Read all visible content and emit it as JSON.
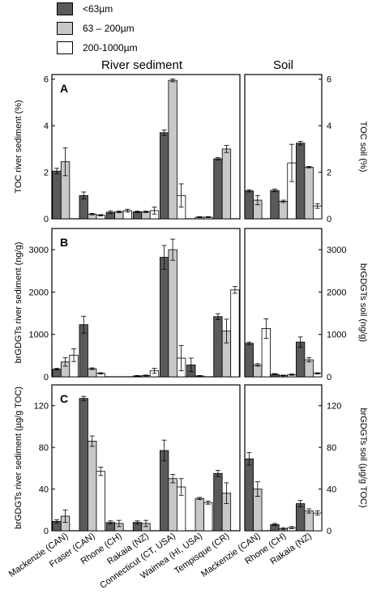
{
  "colors": {
    "lt63": "#5a5a5a",
    "m63_200": "#c8c8c8",
    "m200_1000": "#ffffff",
    "axis": "#000000"
  },
  "legend": [
    {
      "label": "<63µm",
      "color": "#5a5a5a"
    },
    {
      "label": "63 – 200µm",
      "color": "#c8c8c8"
    },
    {
      "label": "200-1000µm",
      "color": "#ffffff"
    }
  ],
  "headers": {
    "river": "River sediment",
    "soil": "Soil"
  },
  "chart_data": {
    "type": "bar",
    "series_names": [
      "<63µm",
      "63 – 200µm",
      "200-1000µm"
    ],
    "river_categories": [
      "Mackenzie (CAN)",
      "Fraser (CAN)",
      "Rhone (CH)",
      "Rakaia (NZ)",
      "Connecticut (CT, USA)",
      "Waimea (HI, USA)",
      "Tempisque (CR)"
    ],
    "soil_categories": [
      "Mackenzie (CAN)",
      "Rhone (CH)",
      "Rakaia (NZ)"
    ],
    "panels": [
      {
        "label": "A",
        "ylabel_left": "TOC river sediment (%)",
        "ylabel_right": "TOC soil (%)",
        "ylim_left": [
          0,
          6.2
        ],
        "yticks_left": [
          0,
          2,
          4,
          6
        ],
        "ylim_right": [
          0,
          6.2
        ],
        "yticks_right": [
          0,
          2,
          4,
          6
        ],
        "river": [
          [
            {
              "v": 2.05,
              "e": 0.12
            },
            {
              "v": 2.45,
              "e": 0.6
            },
            null
          ],
          [
            {
              "v": 1.0,
              "e": 0.15
            },
            {
              "v": 0.2,
              "e": 0.03
            },
            {
              "v": 0.15,
              "e": 0.03
            }
          ],
          [
            {
              "v": 0.28,
              "e": 0.06
            },
            {
              "v": 0.3,
              "e": 0.04
            },
            {
              "v": 0.35,
              "e": 0.06
            }
          ],
          [
            {
              "v": 0.3,
              "e": 0.03
            },
            {
              "v": 0.3,
              "e": 0.03
            },
            {
              "v": 0.35,
              "e": 0.15
            }
          ],
          [
            {
              "v": 3.7,
              "e": 0.12
            },
            {
              "v": 5.95,
              "e": 0.06
            },
            {
              "v": 1.0,
              "e": 0.5
            }
          ],
          [
            null,
            {
              "v": 0.07,
              "e": 0.02
            },
            {
              "v": 0.07,
              "e": 0.02
            }
          ],
          [
            {
              "v": 2.58,
              "e": 0.05
            },
            {
              "v": 3.0,
              "e": 0.15
            },
            null
          ]
        ],
        "soil": [
          [
            {
              "v": 1.2,
              "e": 0.05
            },
            {
              "v": 0.8,
              "e": 0.2
            },
            null
          ],
          [
            {
              "v": 1.22,
              "e": 0.06
            },
            {
              "v": 0.75,
              "e": 0.05
            },
            {
              "v": 2.4,
              "e": 0.8
            }
          ],
          [
            {
              "v": 3.25,
              "e": 0.08
            },
            {
              "v": 2.22,
              "e": 0.03
            },
            {
              "v": 0.55,
              "e": 0.1
            }
          ]
        ]
      },
      {
        "label": "B",
        "ylabel_left": "brGDGTs river sediment (ng/g)",
        "ylabel_right": "brGDGTs soil (ng/g)",
        "ylim_left": [
          0,
          3500
        ],
        "yticks_left": [
          0,
          1000,
          2000,
          3000
        ],
        "ylim_right": [
          0,
          3500
        ],
        "yticks_right": [
          0,
          1000,
          2000,
          3000
        ],
        "river": [
          [
            {
              "v": 180,
              "e": 20
            },
            {
              "v": 350,
              "e": 100
            },
            {
              "v": 510,
              "e": 150
            }
          ],
          [
            {
              "v": 1230,
              "e": 200
            },
            {
              "v": 190,
              "e": 20
            },
            {
              "v": 80,
              "e": 15
            }
          ],
          [
            null,
            null,
            null
          ],
          [
            {
              "v": 20,
              "e": 10
            },
            {
              "v": 30,
              "e": 10
            },
            {
              "v": 140,
              "e": 60
            }
          ],
          [
            {
              "v": 2820,
              "e": 280
            },
            {
              "v": 3000,
              "e": 250
            },
            {
              "v": 440,
              "e": 300
            }
          ],
          [
            {
              "v": 280,
              "e": 160
            },
            {
              "v": 20,
              "e": 10
            },
            null
          ],
          [
            {
              "v": 1420,
              "e": 70
            },
            {
              "v": 1080,
              "e": 280
            },
            {
              "v": 2050,
              "e": 80
            }
          ]
        ],
        "soil": [
          [
            {
              "v": 790,
              "e": 30
            },
            {
              "v": 280,
              "e": 30
            },
            {
              "v": 1140,
              "e": 230
            }
          ],
          [
            {
              "v": 60,
              "e": 15
            },
            {
              "v": 30,
              "e": 10
            },
            {
              "v": 50,
              "e": 15
            }
          ],
          [
            {
              "v": 820,
              "e": 120
            },
            {
              "v": 400,
              "e": 50
            },
            {
              "v": 80,
              "e": 15
            }
          ]
        ]
      },
      {
        "label": "C",
        "ylabel_left": "brGDGTs river sediment (µg/g TOC)",
        "ylabel_right": "brGDGTs soil (µg/g TOC)",
        "ylim_left": [
          0,
          140
        ],
        "yticks_left": [
          0,
          40,
          80,
          120
        ],
        "ylim_right": [
          0,
          140
        ],
        "yticks_right": [
          0,
          40,
          80,
          120
        ],
        "river": [
          [
            {
              "v": 9,
              "e": 1.5
            },
            {
              "v": 14,
              "e": 6
            },
            null
          ],
          [
            {
              "v": 127,
              "e": 2
            },
            {
              "v": 86,
              "e": 5
            },
            {
              "v": 57,
              "e": 4
            }
          ],
          [
            {
              "v": 8,
              "e": 1.5
            },
            {
              "v": 7,
              "e": 3
            },
            null
          ],
          [
            {
              "v": 8,
              "e": 1.5
            },
            {
              "v": 7,
              "e": 3
            },
            null
          ],
          [
            {
              "v": 77,
              "e": 10
            },
            {
              "v": 50,
              "e": 4
            },
            {
              "v": 42,
              "e": 8
            }
          ],
          [
            null,
            {
              "v": 31,
              "e": 1
            },
            {
              "v": 27,
              "e": 1.5
            }
          ],
          [
            {
              "v": 55,
              "e": 3
            },
            {
              "v": 36,
              "e": 10
            },
            null
          ]
        ],
        "soil": [
          [
            {
              "v": 69,
              "e": 6
            },
            {
              "v": 40,
              "e": 7
            },
            null
          ],
          [
            {
              "v": 6,
              "e": 1
            },
            {
              "v": 2,
              "e": 1
            },
            {
              "v": 3,
              "e": 1
            }
          ],
          [
            {
              "v": 26,
              "e": 3
            },
            {
              "v": 19,
              "e": 2
            },
            {
              "v": 17,
              "e": 2
            }
          ]
        ]
      }
    ]
  }
}
